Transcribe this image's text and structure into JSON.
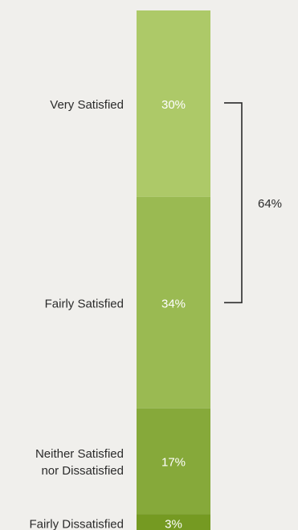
{
  "chart_data": {
    "type": "bar",
    "orientation": "stacked-vertical-single",
    "categories": [
      "Very Satisfied",
      "Fairly Satisfied",
      "Neither Satisfied nor Dissatisfied",
      "Fairly Dissatisfied"
    ],
    "category_lines": [
      [
        "Very Satisfied"
      ],
      [
        "Fairly Satisfied"
      ],
      [
        "Neither Satisfied",
        "nor Dissatisfied"
      ],
      [
        "Fairly Dissatisfied"
      ]
    ],
    "values": [
      30,
      34,
      17,
      3
    ],
    "value_labels": [
      "30%",
      "34%",
      "17%",
      "3%"
    ],
    "unit": "%",
    "colors": [
      "#adc968",
      "#9aba52",
      "#86a93a",
      "#759a22"
    ],
    "bracket": {
      "label": "64%",
      "from_category": 0,
      "to_category": 1
    },
    "title": "",
    "xlabel": "",
    "ylabel": "",
    "legend": "none",
    "grid": false
  }
}
